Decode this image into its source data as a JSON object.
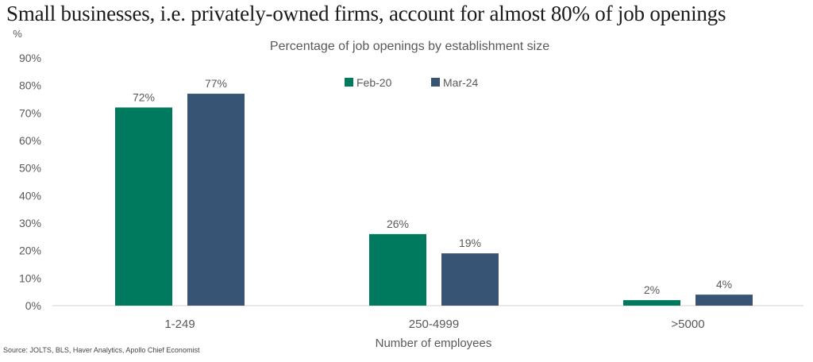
{
  "headline": "Small businesses, i.e. privately-owned firms, account for almost 80% of job openings",
  "source": "Source: JOLTS, BLS, Haver Analytics, Apollo Chief Economist",
  "colors": {
    "feb20": "#007a5e",
    "mar24": "#375474",
    "axis": "#d0d0d0",
    "text": "#595959"
  },
  "chart_data": {
    "type": "bar",
    "title": "Percentage of job openings by establishment size",
    "xlabel": "Number of employees",
    "ylabel": "%",
    "categories": [
      "1-249",
      "250-4999",
      ">5000"
    ],
    "series": [
      {
        "name": "Feb-20",
        "values": [
          72,
          26,
          2
        ],
        "labels": [
          "72%",
          "26%",
          "2%"
        ]
      },
      {
        "name": "Mar-24",
        "values": [
          77,
          19,
          4
        ],
        "labels": [
          "77%",
          "19%",
          "4%"
        ]
      }
    ],
    "ylim": [
      0,
      90
    ],
    "yticks": [
      0,
      10,
      20,
      30,
      40,
      50,
      60,
      70,
      80,
      90
    ],
    "ytick_labels": [
      "0%",
      "10%",
      "20%",
      "30%",
      "40%",
      "50%",
      "60%",
      "70%",
      "80%",
      "90%"
    ],
    "grid": false,
    "legend_position": "top-center"
  }
}
